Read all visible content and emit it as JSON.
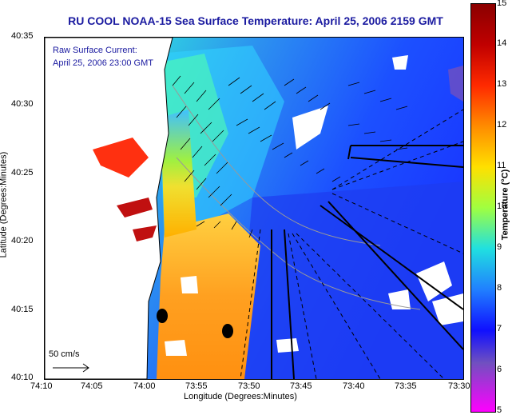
{
  "title": "RU COOL  NOAA-15  Sea Surface Temperature:  April 25, 2006 2159 GMT",
  "legend": {
    "line1": "Raw Surface Current:",
    "line2": "April 25, 2006 23:00 GMT"
  },
  "scale": {
    "label": "50 cm/s"
  },
  "axes": {
    "ylabel": "Latitude (Degrees:Minutes)",
    "xlabel": "Longitude (Degrees:Minutes)",
    "yticks": [
      "40:35",
      "40:30",
      "40:25",
      "40:20",
      "40:15",
      "40:10"
    ],
    "xticks": [
      "74:10",
      "74:05",
      "74:00",
      "73:55",
      "73:50",
      "73:45",
      "73:40",
      "73:35",
      "73:30"
    ]
  },
  "colorbar": {
    "label": "Temperature (°C)",
    "ticks": [
      "15",
      "14",
      "13",
      "12",
      "11",
      "10",
      "9",
      "8",
      "7",
      "6",
      "5"
    ],
    "range": [
      5,
      15
    ]
  },
  "colors": {
    "title": "#1a1aa0",
    "land": "#ffffff"
  }
}
